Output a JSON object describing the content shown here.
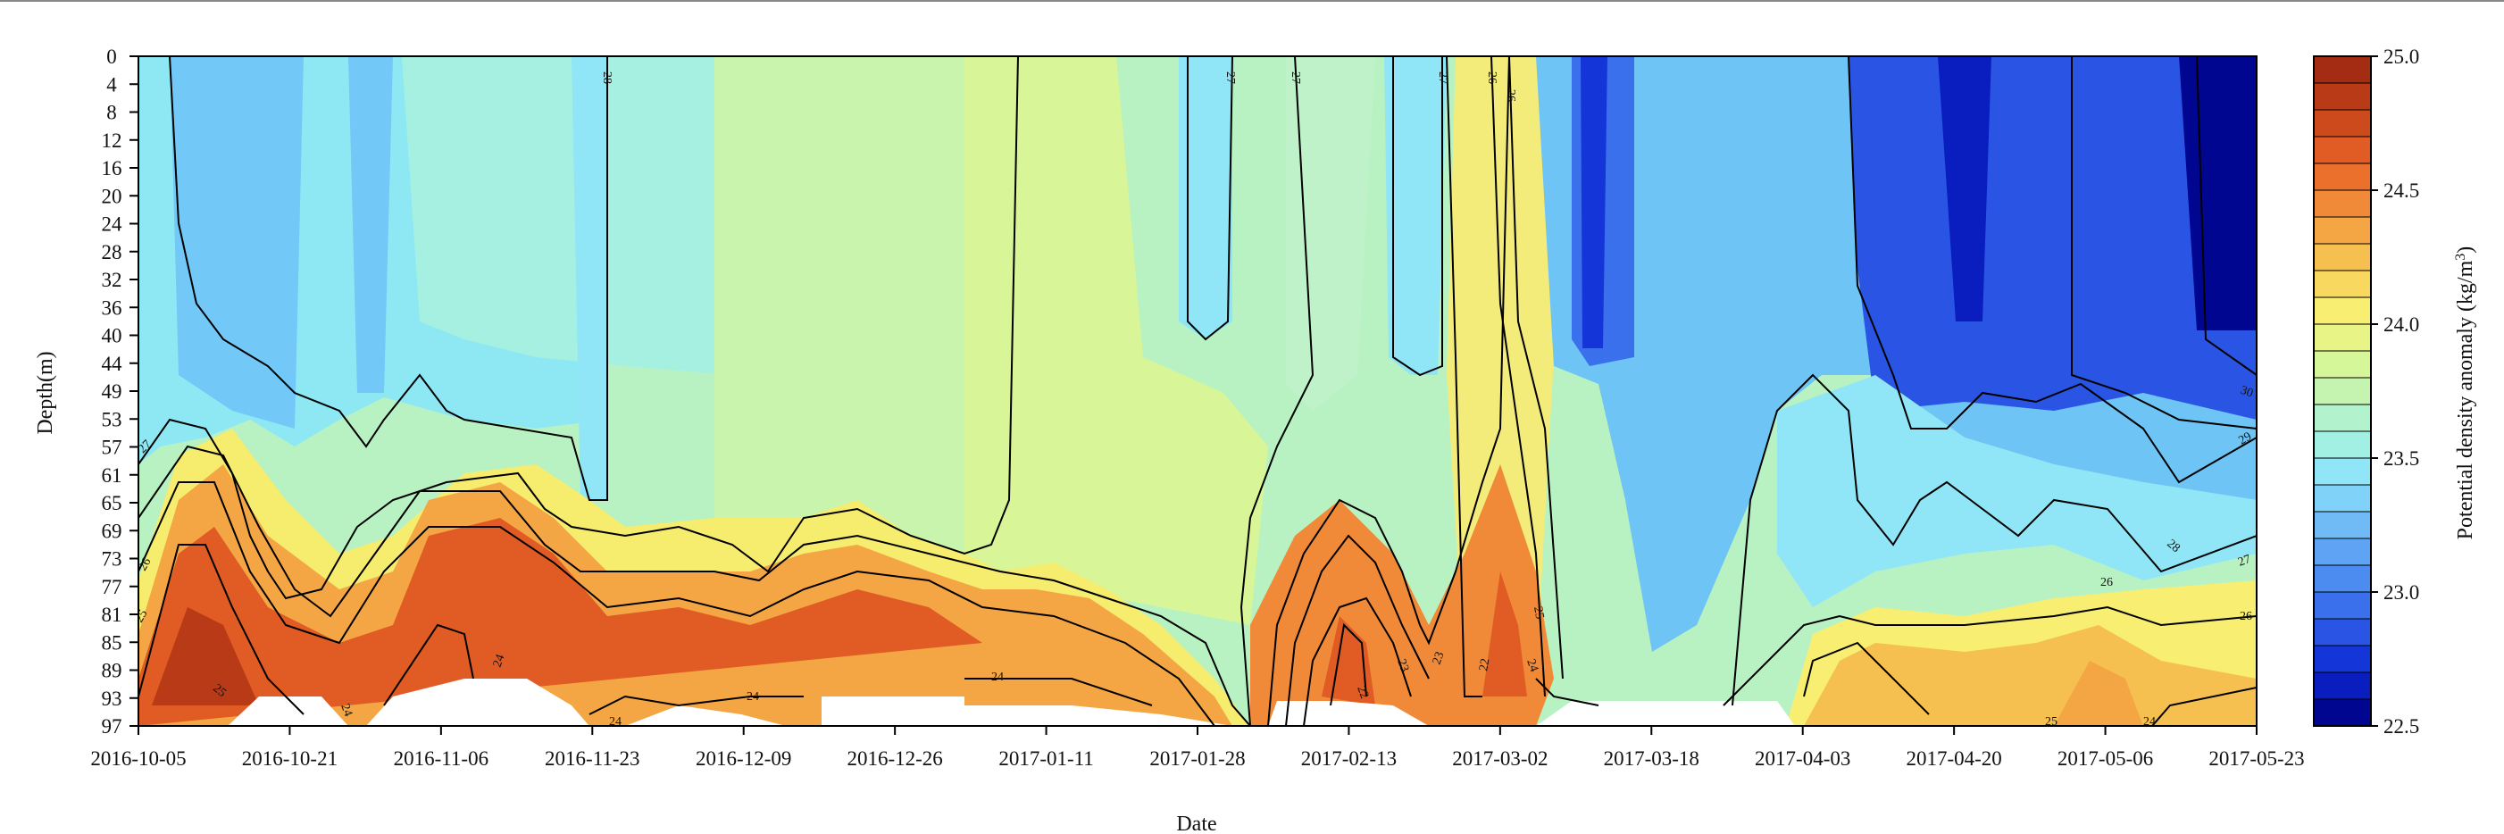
{
  "chart_data": {
    "type": "heatmap",
    "title": "",
    "xlabel": "Date",
    "ylabel": "Depth(m)",
    "x_ticks": [
      "2016-10-05",
      "2016-10-21",
      "2016-11-06",
      "2016-11-23",
      "2016-12-09",
      "2016-12-26",
      "2017-01-11",
      "2017-01-28",
      "2017-02-13",
      "2017-03-02",
      "2017-03-18",
      "2017-04-03",
      "2017-04-20",
      "2017-05-06",
      "2017-05-23"
    ],
    "y_ticks": [
      0,
      4,
      8,
      12,
      16,
      20,
      24,
      28,
      32,
      36,
      40,
      44,
      49,
      53,
      57,
      61,
      65,
      69,
      73,
      77,
      81,
      85,
      89,
      93,
      97
    ],
    "ylim": [
      97,
      0
    ],
    "colorbar": {
      "label": "Potential density anomaly (kg/m³)",
      "label_main": "Potential density anomaly (kg/m",
      "label_sup": "3",
      "label_end": ")",
      "min": 22.5,
      "max": 25.0,
      "ticks": [
        "22.5",
        "23.0",
        "23.5",
        "24.0",
        "24.5",
        "25.0"
      ],
      "colors": [
        "#00068f",
        "#0a1ec0",
        "#1435d8",
        "#2a55e4",
        "#3b70ec",
        "#4c8bf0",
        "#5ea3f4",
        "#70bbf6",
        "#80d2f8",
        "#90e6f6",
        "#a2f0e4",
        "#b2f2cc",
        "#c4f4b0",
        "#d6f69a",
        "#e8f486",
        "#f8ee72",
        "#f9d860",
        "#f6c050",
        "#f4a644",
        "#f08a38",
        "#ea702c",
        "#e05c24",
        "#cc4a1c",
        "#b83a16",
        "#a32c12"
      ]
    },
    "contour_labels": [
      {
        "text": "28"
      },
      {
        "text": "27"
      },
      {
        "text": "27"
      },
      {
        "text": "27"
      },
      {
        "text": "26"
      },
      {
        "text": "26"
      },
      {
        "text": "27"
      },
      {
        "text": "26"
      },
      {
        "text": "25"
      },
      {
        "text": "25"
      },
      {
        "text": "24"
      },
      {
        "text": "24"
      },
      {
        "text": "24"
      },
      {
        "text": "24"
      },
      {
        "text": "24"
      },
      {
        "text": "22"
      },
      {
        "text": "23"
      },
      {
        "text": "23"
      },
      {
        "text": "22"
      },
      {
        "text": "24"
      },
      {
        "text": "25"
      },
      {
        "text": "28"
      },
      {
        "text": "29"
      },
      {
        "text": "30"
      },
      {
        "text": "27"
      },
      {
        "text": "26"
      },
      {
        "text": "26"
      },
      {
        "text": "25"
      },
      {
        "text": "24"
      }
    ]
  }
}
